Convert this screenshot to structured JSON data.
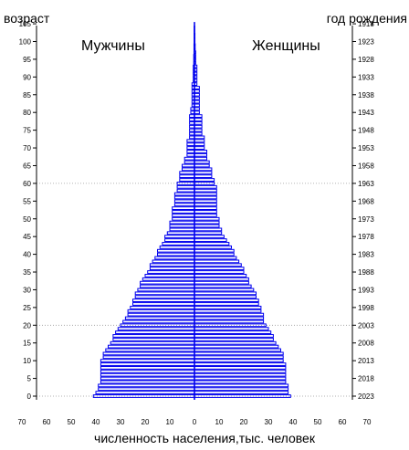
{
  "header": {
    "left_title": "возраст",
    "right_title": "год рождения"
  },
  "chart_data": {
    "type": "bar",
    "orientation": "horizontal",
    "title": "",
    "xlabel": "численность населения,тыс. человек",
    "ylabel_left": "возраст",
    "ylabel_right": "год рождения",
    "x_ticks": [
      70,
      60,
      50,
      40,
      30,
      20,
      10,
      0,
      10,
      20,
      30,
      40,
      50,
      60,
      70
    ],
    "xlim": [
      -70,
      70
    ],
    "y_ticks_age": [
      0,
      5,
      10,
      15,
      20,
      25,
      30,
      35,
      40,
      45,
      50,
      55,
      60,
      65,
      70,
      75,
      80,
      85,
      90,
      95,
      100,
      105
    ],
    "y_ticks_year": [
      2023,
      2018,
      2013,
      2008,
      2003,
      1998,
      1993,
      1988,
      1983,
      1978,
      1973,
      1968,
      1963,
      1958,
      1953,
      1948,
      1943,
      1938,
      1933,
      1928,
      1923,
      1918
    ],
    "ylim": [
      0,
      106
    ],
    "grid": "dotted lines at 0, 20 and 60 years",
    "bar_color": "#0000ee",
    "series": [
      {
        "name": "Мужчины",
        "label_ages": "0-1 … 105",
        "values": [
          41,
          40,
          39,
          39,
          38,
          38,
          38,
          38,
          38,
          38,
          38,
          37,
          37,
          36,
          35,
          34,
          33,
          33,
          32,
          31,
          30,
          29,
          28,
          27,
          27,
          26,
          25,
          25,
          24,
          24,
          23,
          22,
          22,
          21,
          20,
          19,
          18,
          18,
          17,
          16,
          15,
          15,
          14,
          13,
          12,
          12,
          11,
          10,
          10,
          10,
          9,
          9,
          9,
          9,
          8,
          8,
          8,
          8,
          7,
          7,
          7,
          6,
          6,
          6,
          5,
          5,
          4,
          4,
          3,
          3,
          3,
          3,
          3,
          2,
          2,
          2,
          2,
          2,
          2,
          2,
          1.5,
          1.5,
          1,
          1,
          1,
          1,
          1,
          1,
          1,
          0.5,
          0.5,
          0.5,
          0.5,
          0.5,
          0.3,
          0.3,
          0.3,
          0.2,
          0.2,
          0.2,
          0.1,
          0.1,
          0.1,
          0.1,
          0.1,
          0.1
        ]
      },
      {
        "name": "Женщины",
        "values": [
          39,
          38,
          38,
          38,
          37,
          37,
          37,
          37,
          37,
          37,
          36,
          36,
          36,
          35,
          34,
          33,
          32,
          32,
          31,
          30,
          29,
          28,
          28,
          28,
          27,
          27,
          26,
          26,
          25,
          25,
          24,
          23,
          22,
          22,
          21,
          20,
          20,
          19,
          18,
          17,
          16,
          16,
          15,
          14,
          13,
          12,
          11,
          11,
          10,
          10,
          10,
          9,
          9,
          9,
          9,
          9,
          9,
          9,
          9,
          9,
          8,
          8,
          7,
          7,
          7,
          6,
          6,
          5,
          5,
          5,
          4,
          4,
          4,
          4,
          3,
          3,
          3,
          3,
          3,
          3,
          2,
          2,
          2,
          2,
          2,
          2,
          2,
          2,
          1,
          1,
          1,
          1,
          1,
          1,
          0.5,
          0.5,
          0.5,
          0.5,
          0.3,
          0.3,
          0.2,
          0.2,
          0.2,
          0.1,
          0.1,
          0.1
        ]
      }
    ]
  }
}
